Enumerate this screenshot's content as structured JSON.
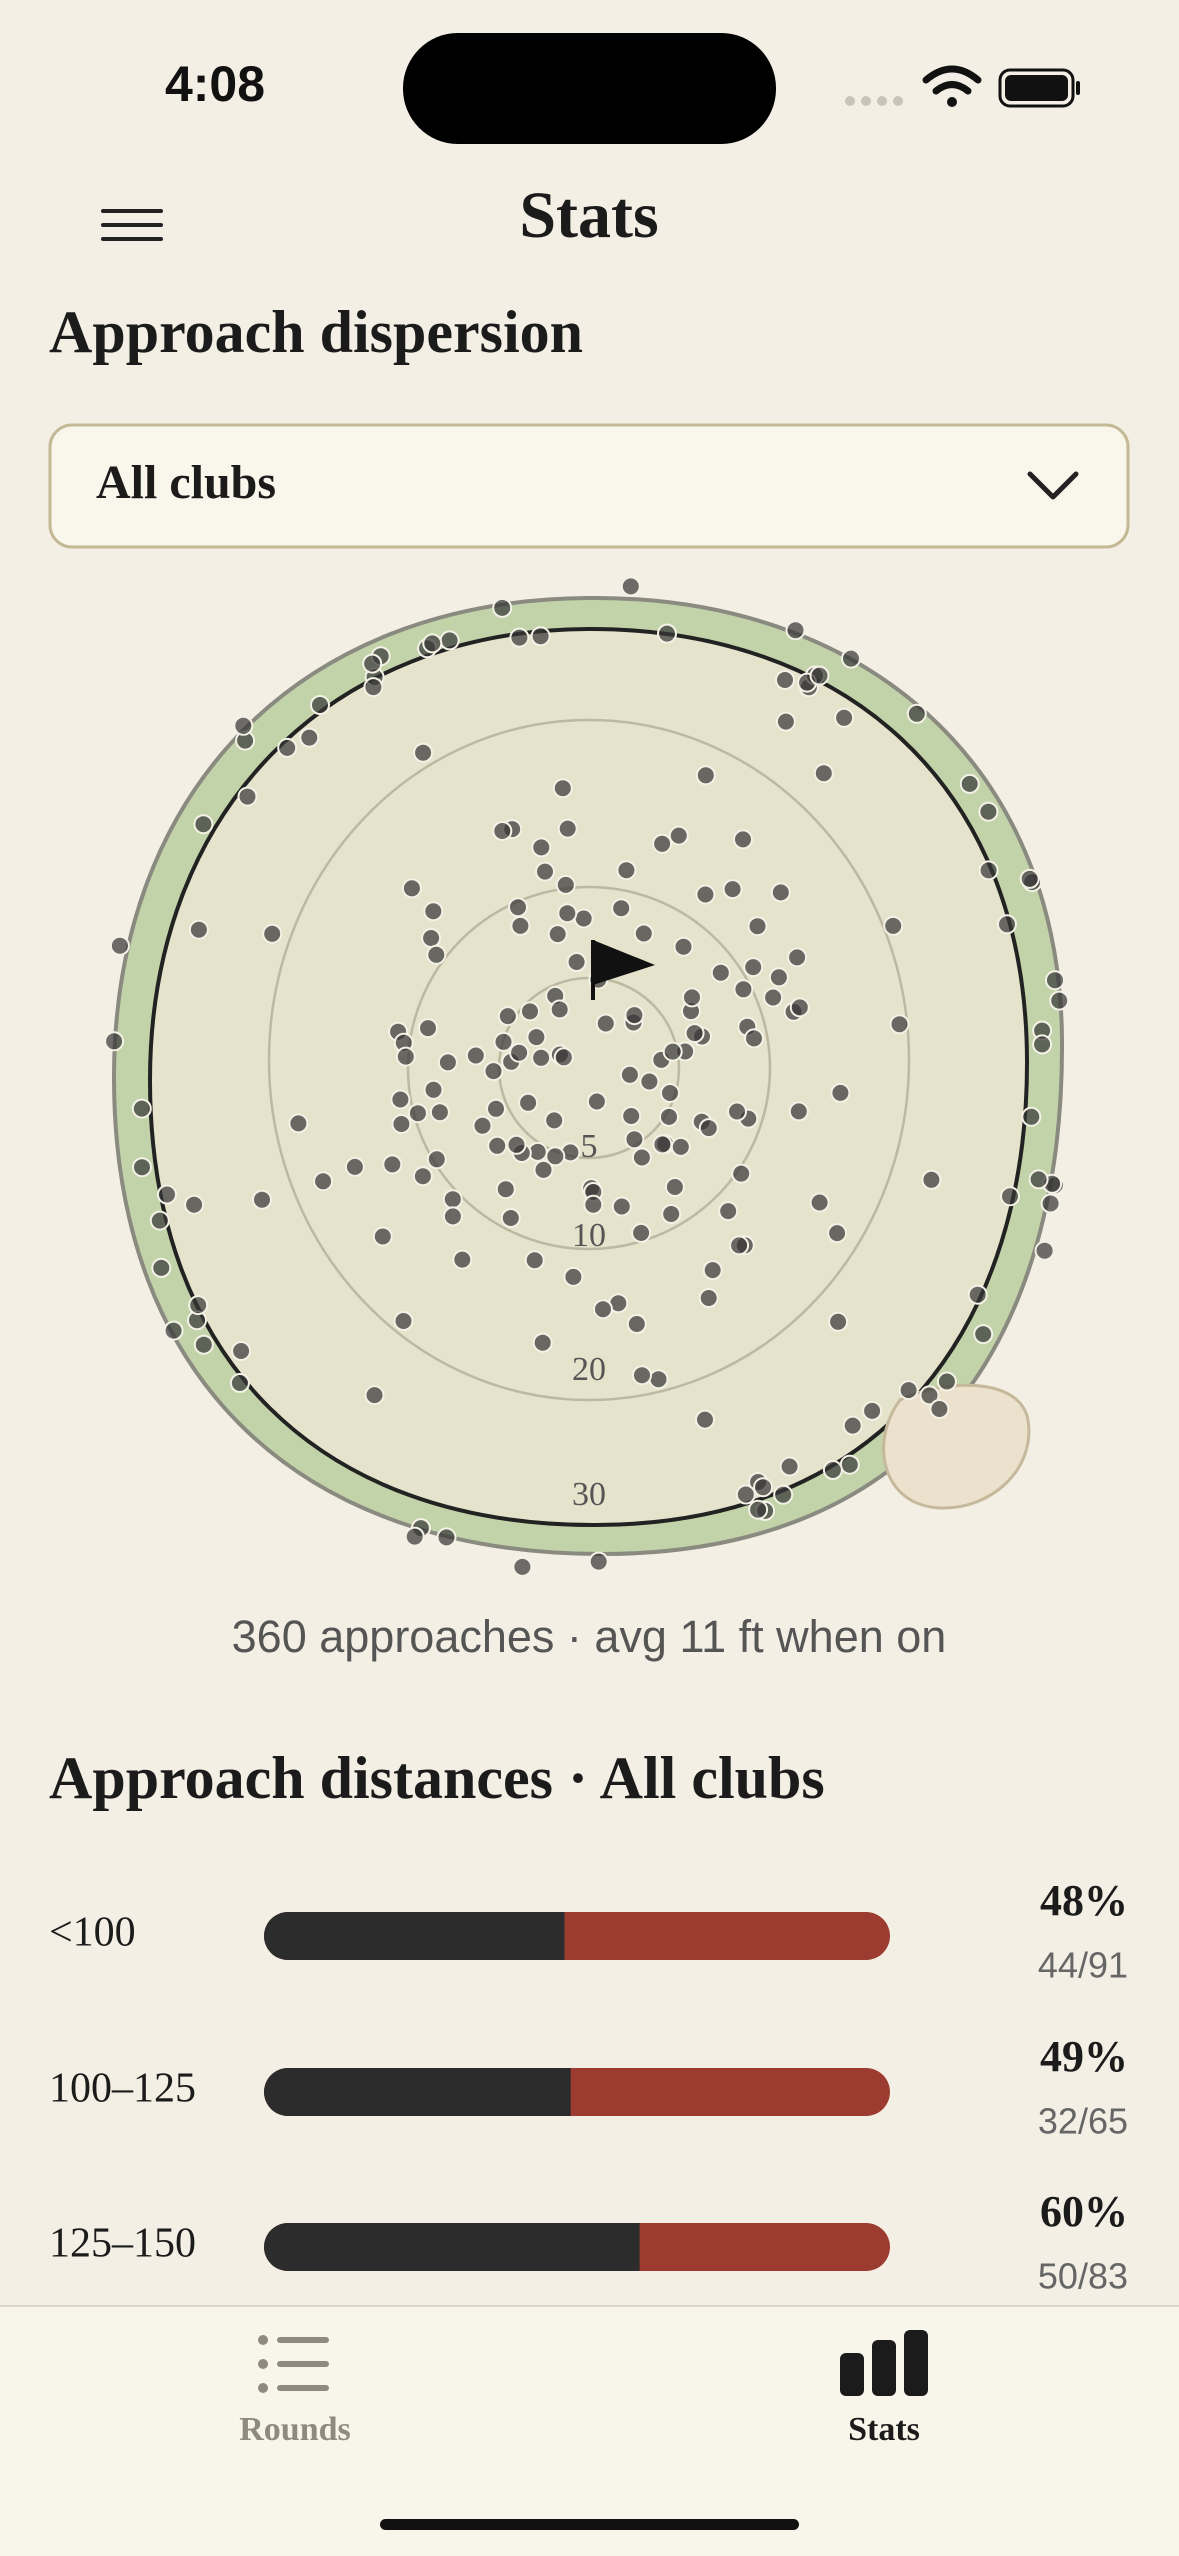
{
  "status_bar": {
    "time": "4:08"
  },
  "header": {
    "title": "Stats"
  },
  "dispersion": {
    "title": "Approach dispersion",
    "club_select": "All clubs",
    "ring_labels": [
      5,
      10,
      20,
      30
    ],
    "summary": "360 approaches · avg 11 ft when on"
  },
  "distances": {
    "title": "Approach distances · All clubs",
    "rows": [
      {
        "label": "<100",
        "value": 48,
        "value_label": "48%",
        "ratio": "44/91"
      },
      {
        "label": "100–125",
        "value": 49,
        "value_label": "49%",
        "ratio": "32/65"
      },
      {
        "label": "125–150",
        "value": 60,
        "value_label": "60%",
        "ratio": "50/83"
      }
    ]
  },
  "tab_bar": {
    "tabs": [
      "Rounds",
      "Stats"
    ]
  }
}
